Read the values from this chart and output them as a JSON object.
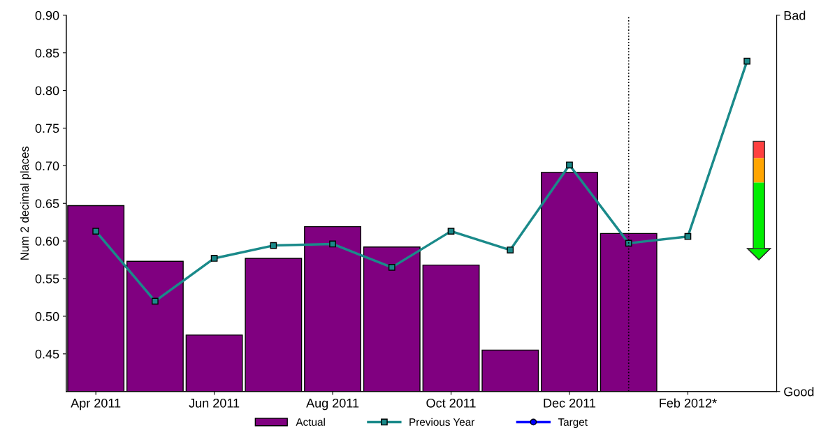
{
  "chart_data": {
    "type": "bar",
    "ylabel": "Num 2 decimal places",
    "categories": [
      "Apr 2011",
      null,
      "Jun 2011",
      null,
      "Aug 2011",
      null,
      "Oct 2011",
      null,
      "Dec 2011",
      null,
      "Feb 2012*",
      null
    ],
    "series": [
      {
        "name": "Actual",
        "color": "#800080",
        "values": [
          0.647,
          0.573,
          0.475,
          0.577,
          0.619,
          0.592,
          0.568,
          0.455,
          0.691,
          0.61,
          null,
          null
        ]
      },
      {
        "name": "Previous Year",
        "type": "line",
        "color": "#1a8a8a",
        "marker": "square",
        "values": [
          0.613,
          0.52,
          0.577,
          0.594,
          0.596,
          0.565,
          0.613,
          0.588,
          0.701,
          0.597,
          0.606,
          0.839
        ]
      },
      {
        "name": "Target",
        "type": "line",
        "color": "#0000ff",
        "marker": "circle",
        "values": [
          null,
          null,
          null,
          null,
          null,
          null,
          null,
          null,
          null,
          null,
          null,
          null
        ]
      }
    ],
    "ylim": [
      0.4,
      0.9
    ],
    "yticks": [
      0.45,
      {
        "value": 0.5,
        "label": "0.50"
      },
      0.55,
      {
        "value": 0.6,
        "label": "0.60"
      },
      0.65,
      {
        "value": 0.7,
        "label": "0.70"
      },
      0.75,
      {
        "value": 0.8,
        "label": "0.80"
      },
      0.85,
      {
        "value": 0.9,
        "label": "0.90"
      }
    ],
    "annotations": [
      "Bad",
      "Good"
    ],
    "legend": "bottom"
  }
}
